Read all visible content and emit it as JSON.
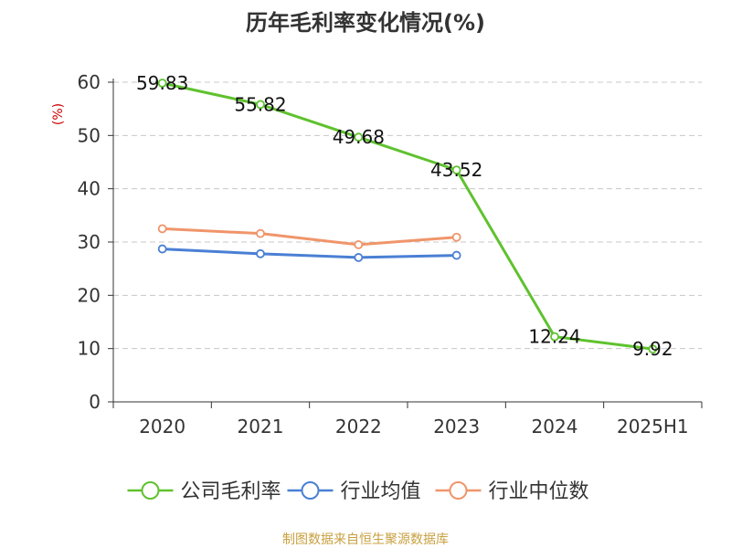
{
  "chart_data": {
    "type": "line",
    "title": "历年毛利率变化情况(%)",
    "ylabel": "(%)",
    "xlabel": "",
    "categories": [
      "2020",
      "2021",
      "2022",
      "2023",
      "2024",
      "2025H1"
    ],
    "ylim": [
      0,
      60
    ],
    "yticks": [
      0,
      10,
      20,
      30,
      40,
      50,
      60
    ],
    "grid": true,
    "legend_position": "bottom",
    "series": [
      {
        "name": "公司毛利率",
        "color": "#5fc22e",
        "values": [
          59.83,
          55.82,
          49.68,
          43.52,
          12.24,
          9.92
        ],
        "labels": [
          "59.83",
          "55.82",
          "49.68",
          "43.52",
          "12.24",
          "9.92"
        ]
      },
      {
        "name": "行业均值",
        "color": "#4a7fd4",
        "values": [
          28.7,
          27.8,
          27.1,
          27.5,
          null,
          null
        ]
      },
      {
        "name": "行业中位数",
        "color": "#f0956a",
        "values": [
          32.5,
          31.6,
          29.5,
          30.9,
          null,
          null
        ]
      }
    ]
  },
  "source_text": "制图数据来自恒生聚源数据库"
}
